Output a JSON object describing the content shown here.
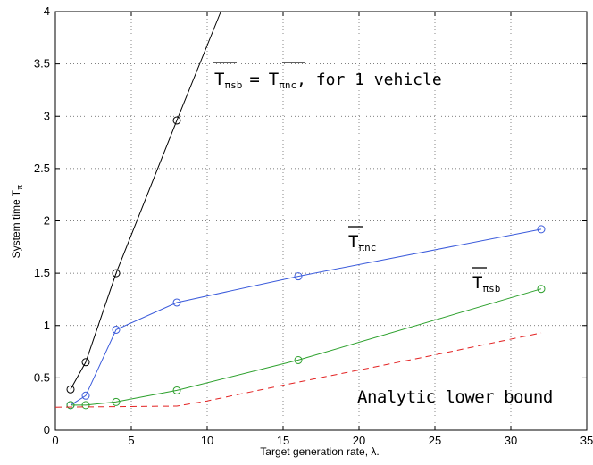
{
  "chart_data": {
    "type": "line",
    "xlabel": "Target generation rate, λ.",
    "ylabel": "System time T",
    "ylabel_sub": "π",
    "xlim": [
      0,
      35
    ],
    "ylim": [
      0,
      4
    ],
    "xticks": [
      0,
      5,
      10,
      15,
      20,
      25,
      30,
      35
    ],
    "yticks": [
      0,
      0.5,
      1,
      1.5,
      2,
      2.5,
      3,
      3.5,
      4
    ],
    "xtick_labels": [
      "0",
      "5",
      "10",
      "15",
      "20",
      "25",
      "30",
      "35"
    ],
    "ytick_labels": [
      "0",
      "0.5",
      "1",
      "1.5",
      "2",
      "2.5",
      "3",
      "3.5",
      "4"
    ],
    "grid": true,
    "series": [
      {
        "color": "#000000",
        "style": "solid",
        "marker": "circle",
        "points": [
          [
            1,
            0.39
          ],
          [
            2,
            0.65
          ],
          [
            4,
            1.5
          ],
          [
            8,
            2.96
          ]
        ],
        "line_points": [
          [
            1,
            0.39
          ],
          [
            2,
            0.65
          ],
          [
            4,
            1.5
          ],
          [
            8,
            2.96
          ],
          [
            10.9,
            4.0
          ]
        ]
      },
      {
        "color": "#3b5bdb",
        "style": "solid",
        "marker": "circle",
        "points": [
          [
            1,
            0.24
          ],
          [
            2,
            0.33
          ],
          [
            4,
            0.96
          ],
          [
            8,
            1.22
          ],
          [
            16,
            1.47
          ],
          [
            32,
            1.92
          ]
        ]
      },
      {
        "color": "#2ca02c",
        "style": "solid",
        "marker": "circle",
        "points": [
          [
            1,
            0.24
          ],
          [
            2,
            0.24
          ],
          [
            4,
            0.27
          ],
          [
            8,
            0.38
          ],
          [
            16,
            0.67
          ],
          [
            32,
            1.35
          ]
        ]
      },
      {
        "color": "#e32222",
        "style": "dashed",
        "marker": "none",
        "points": [
          [
            0,
            0.22
          ],
          [
            8,
            0.23
          ],
          [
            10,
            0.28
          ],
          [
            16,
            0.46
          ],
          [
            24,
            0.69
          ],
          [
            32,
            0.93
          ]
        ]
      }
    ],
    "annotations": [
      {
        "main": "T",
        "sub": "π",
        "sub2": "sb",
        "rest_main": "T",
        "rest_sub": "π",
        "rest_sub2": "nc",
        "tail": ", for 1 vehicle",
        "equals": "="
      },
      {
        "main": "T",
        "sub": "π",
        "sub2": "nc"
      },
      {
        "main": "T",
        "sub": "π",
        "sub2": "sb"
      },
      {
        "text": "Analytic lower bound"
      }
    ]
  }
}
